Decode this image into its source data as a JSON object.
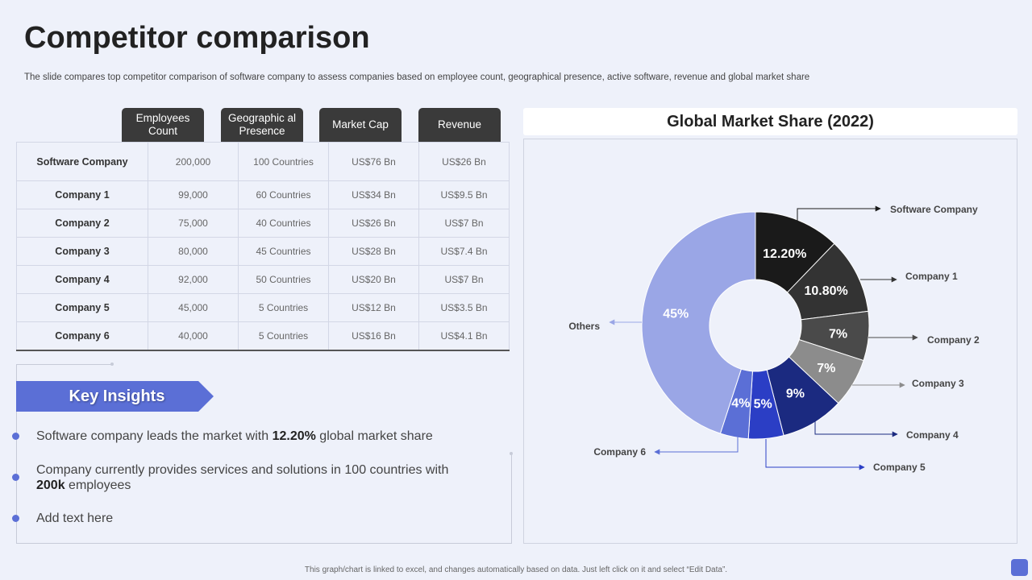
{
  "title": "Competitor comparison",
  "subtitle": "The slide compares top competitor comparison of software company to assess companies based on employee count, geographical presence, active software, revenue and global market share",
  "table": {
    "headers": [
      "Employees Count",
      "Geographic al Presence",
      "Market Cap",
      "Revenue"
    ],
    "rows": [
      {
        "name": "Software Company",
        "employees": "200,000",
        "presence": "100 Countries",
        "market_cap": "US$76 Bn",
        "revenue": "US$26 Bn"
      },
      {
        "name": "Company 1",
        "employees": "99,000",
        "presence": "60 Countries",
        "market_cap": "US$34 Bn",
        "revenue": "US$9.5 Bn"
      },
      {
        "name": "Company 2",
        "employees": "75,000",
        "presence": "40 Countries",
        "market_cap": "US$26 Bn",
        "revenue": "US$7 Bn"
      },
      {
        "name": "Company 3",
        "employees": "80,000",
        "presence": "45 Countries",
        "market_cap": "US$28 Bn",
        "revenue": "US$7.4 Bn"
      },
      {
        "name": "Company 4",
        "employees": "92,000",
        "presence": "50 Countries",
        "market_cap": "US$20 Bn",
        "revenue": "US$7 Bn"
      },
      {
        "name": "Company 5",
        "employees": "45,000",
        "presence": "5 Countries",
        "market_cap": "US$12 Bn",
        "revenue": "US$3.5 Bn"
      },
      {
        "name": "Company 6",
        "employees": "40,000",
        "presence": "5 Countries",
        "market_cap": "US$16 Bn",
        "revenue": "US$4.1 Bn"
      }
    ]
  },
  "insights": {
    "label": "Key Insights",
    "items": [
      {
        "pre": "Software company  leads  the market with ",
        "bold": "12.20%",
        "post": " global market share"
      },
      {
        "pre": "Company currently  provides services and solutions in 100 countries with ",
        "bold": "200k",
        "post": " employees"
      },
      {
        "pre": "Add text here",
        "bold": "",
        "post": ""
      }
    ]
  },
  "chart_data": {
    "type": "pie",
    "style": "donut",
    "title": "Global Market Share (2022)",
    "slices": [
      {
        "name": "Software Company",
        "value": 12.2,
        "label": "12.20%",
        "color": "#1a1a1a"
      },
      {
        "name": "Company 1",
        "value": 10.8,
        "label": "10.80%",
        "color": "#333333"
      },
      {
        "name": "Company 2",
        "value": 7,
        "label": "7%",
        "color": "#4a4a4a"
      },
      {
        "name": "Company 3",
        "value": 7,
        "label": "7%",
        "color": "#8c8c8c"
      },
      {
        "name": "Company 4",
        "value": 9,
        "label": "9%",
        "color": "#1b2a80"
      },
      {
        "name": "Company 5",
        "value": 5,
        "label": "5%",
        "color": "#2b3ec5"
      },
      {
        "name": "Company 6",
        "value": 4,
        "label": "4%",
        "color": "#5b6fd6"
      },
      {
        "name": "Others",
        "value": 45,
        "label": "45%",
        "color": "#9aa6e6"
      }
    ]
  },
  "footer": "This graph/chart is linked to excel, and changes automatically based on data. Just left click on it and select “Edit Data”.",
  "colors": {
    "accent": "#5b6fd6",
    "header_bg": "#3a3a3a",
    "background": "#eef1fa"
  }
}
